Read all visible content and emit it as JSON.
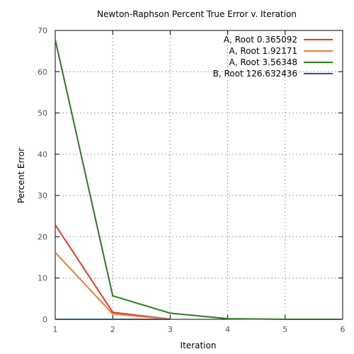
{
  "chart_data": {
    "type": "line",
    "title": "Newton-Raphson Percent True Error v. Iteration",
    "xlabel": "Iteration",
    "ylabel": "Percent Error",
    "xlim": [
      1,
      6
    ],
    "ylim": [
      0,
      70
    ],
    "xticks": [
      1,
      2,
      3,
      4,
      5,
      6
    ],
    "yticks": [
      0,
      10,
      20,
      30,
      40,
      50,
      60,
      70
    ],
    "grid": true,
    "legend_position": "top-right",
    "series": [
      {
        "name": "A, Root 0.365092",
        "color": "#e2382a",
        "x": [
          1,
          2,
          3
        ],
        "y": [
          22.9,
          1.7,
          0.05
        ]
      },
      {
        "name": "A, Root 1.92171",
        "color": "#f07b30",
        "x": [
          1,
          2,
          3
        ],
        "y": [
          16.2,
          1.3,
          0.02
        ]
      },
      {
        "name": "A, Root 3.56348",
        "color": "#2a7a1d",
        "x": [
          1,
          2,
          3,
          4,
          5,
          6
        ],
        "y": [
          67.8,
          5.7,
          1.5,
          0.15,
          0.0,
          0.0
        ]
      },
      {
        "name": "B, Root 126.632436",
        "color": "#1b5e8a",
        "x": [
          1,
          2,
          3
        ],
        "y": [
          0.0,
          0.0,
          0.0
        ]
      }
    ]
  }
}
